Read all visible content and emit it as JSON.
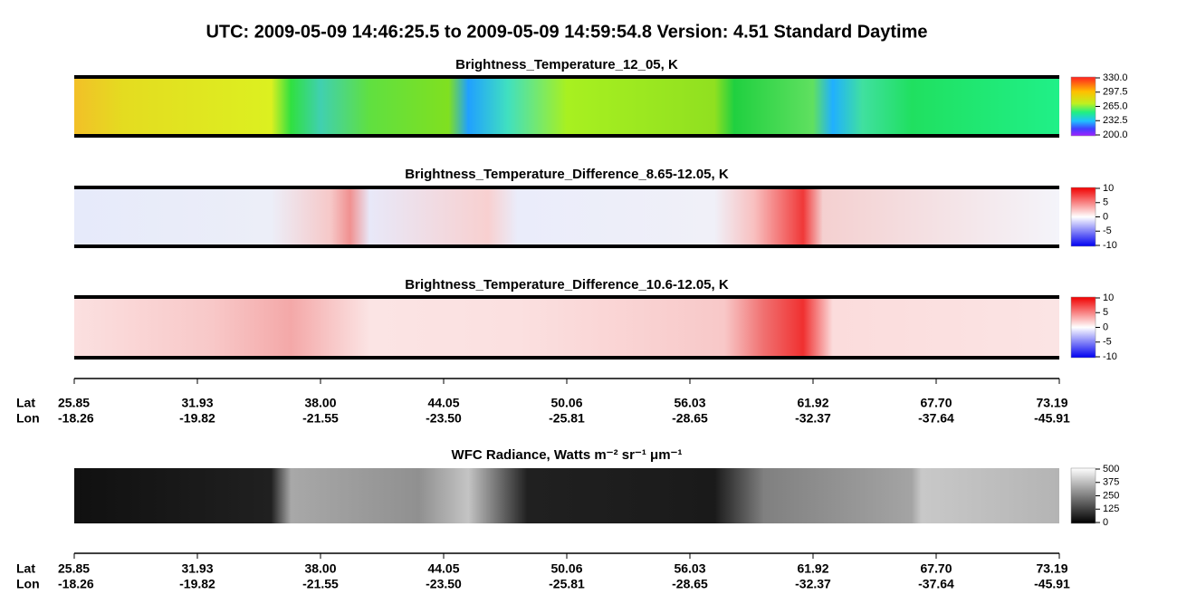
{
  "header": {
    "title": "UTC:  2009-05-09   14:46:25.5  to  2009-05-09   14:59:54.8    Version: 4.51  Standard Daytime"
  },
  "panels": [
    {
      "title": "Brightness_Temperature_12_05, K",
      "colorbar": [
        "330.0",
        "297.5",
        "265.0",
        "232.5",
        "200.0"
      ]
    },
    {
      "title": "Brightness_Temperature_Difference_8.65-12.05, K",
      "colorbar": [
        "10",
        "5",
        "0",
        "-5",
        "-10"
      ]
    },
    {
      "title": "Brightness_Temperature_Difference_10.6-12.05, K",
      "colorbar": [
        "10",
        "5",
        "0",
        "-5",
        "-10"
      ]
    },
    {
      "title": "WFC Radiance, Watts m⁻² sr⁻¹ μm⁻¹",
      "colorbar": [
        "500",
        "375",
        "250",
        "125",
        "0"
      ]
    }
  ],
  "axis": {
    "lat_label": "Lat",
    "lon_label": "Lon",
    "lat": [
      "25.85",
      "31.93",
      "38.00",
      "44.05",
      "50.06",
      "56.03",
      "61.92",
      "67.70",
      "73.19"
    ],
    "lon": [
      "-18.26",
      "-19.82",
      "-21.55",
      "-23.50",
      "-25.81",
      "-28.65",
      "-32.37",
      "-37.64",
      "-45.91"
    ]
  }
}
